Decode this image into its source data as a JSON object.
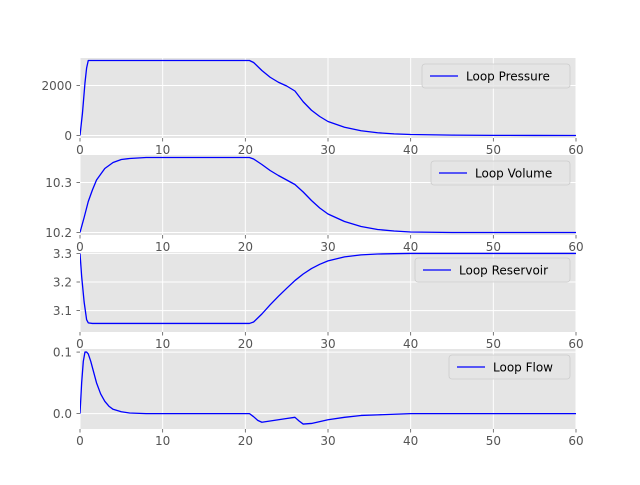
{
  "chart_data": [
    {
      "type": "line",
      "title": "",
      "xlabel": "",
      "ylabel": "",
      "xlim": [
        0,
        60
      ],
      "ylim": [
        -100,
        3100
      ],
      "grid": true,
      "legend": {
        "placement": "upper-right",
        "entries": [
          "Loop Pressure"
        ]
      },
      "x_ticks": [
        0,
        10,
        20,
        30,
        40,
        50,
        60
      ],
      "x_tick_labels": [
        "0",
        "10",
        "20",
        "30",
        "40",
        "50",
        "60"
      ],
      "y_ticks": [
        0,
        2000
      ],
      "y_tick_labels": [
        "0",
        "2000"
      ],
      "color": "#0000ff",
      "series": [
        {
          "name": "Loop Pressure",
          "x": [
            0,
            0.3,
            0.6,
            0.8,
            1,
            1.5,
            3,
            5,
            10,
            15,
            20,
            20.5,
            21,
            22,
            23,
            24,
            25,
            26,
            27,
            28,
            29,
            30,
            32,
            34,
            36,
            38,
            40,
            45,
            50,
            55,
            60
          ],
          "y": [
            0,
            900,
            2100,
            2700,
            3000,
            3000,
            3000,
            3000,
            3000,
            3000,
            3000,
            3000,
            2920,
            2600,
            2330,
            2130,
            1980,
            1780,
            1350,
            1010,
            760,
            560,
            330,
            190,
            110,
            65,
            40,
            15,
            5,
            2,
            0
          ]
        }
      ]
    },
    {
      "type": "line",
      "title": "",
      "xlabel": "",
      "ylabel": "",
      "xlim": [
        0,
        60
      ],
      "ylim": [
        10.195,
        10.355
      ],
      "grid": true,
      "legend": {
        "placement": "upper-right",
        "entries": [
          "Loop Volume"
        ]
      },
      "x_ticks": [
        0,
        10,
        20,
        30,
        40,
        50,
        60
      ],
      "x_tick_labels": [
        "0",
        "10",
        "20",
        "30",
        "40",
        "50",
        "60"
      ],
      "y_ticks": [
        10.2,
        10.3
      ],
      "y_tick_labels": [
        "10.2",
        "10.3"
      ],
      "color": "#0000ff",
      "series": [
        {
          "name": "Loop Volume",
          "x": [
            0,
            0.5,
            1,
            1.5,
            2,
            3,
            4,
            5,
            6,
            8,
            10,
            15,
            20,
            20.5,
            21,
            22,
            23,
            24,
            25,
            26,
            27,
            28,
            29,
            30,
            32,
            34,
            36,
            38,
            40,
            45,
            50,
            55,
            60
          ],
          "y": [
            10.2,
            10.23,
            10.262,
            10.285,
            10.305,
            10.328,
            10.34,
            10.346,
            10.348,
            10.35,
            10.35,
            10.35,
            10.35,
            10.35,
            10.347,
            10.336,
            10.324,
            10.314,
            10.305,
            10.296,
            10.281,
            10.264,
            10.249,
            10.237,
            10.222,
            10.212,
            10.206,
            10.203,
            10.201,
            10.2,
            10.2,
            10.2,
            10.2
          ]
        }
      ]
    },
    {
      "type": "line",
      "title": "",
      "xlabel": "",
      "ylabel": "",
      "xlim": [
        0,
        60
      ],
      "ylim": [
        3.025,
        3.305
      ],
      "grid": true,
      "legend": {
        "placement": "upper-right",
        "entries": [
          "Loop Reservoir"
        ]
      },
      "x_ticks": [
        0,
        10,
        20,
        30,
        40,
        50,
        60
      ],
      "x_tick_labels": [
        "0",
        "10",
        "20",
        "30",
        "40",
        "50",
        "60"
      ],
      "y_ticks": [
        3.1,
        3.2,
        3.3
      ],
      "y_tick_labels": [
        "3.1",
        "3.2",
        "3.3"
      ],
      "color": "#0000ff",
      "series": [
        {
          "name": "Loop Reservoir",
          "x": [
            0,
            0.2,
            0.5,
            0.8,
            1,
            1.5,
            2,
            5,
            10,
            15,
            20,
            20.5,
            21,
            22,
            23,
            24,
            25,
            26,
            27,
            28,
            29,
            30,
            32,
            34,
            36,
            38,
            40,
            45,
            50,
            55,
            60
          ],
          "y": [
            3.3,
            3.22,
            3.13,
            3.068,
            3.057,
            3.055,
            3.055,
            3.055,
            3.055,
            3.055,
            3.055,
            3.055,
            3.06,
            3.088,
            3.12,
            3.15,
            3.178,
            3.205,
            3.228,
            3.247,
            3.262,
            3.274,
            3.288,
            3.295,
            3.298,
            3.299,
            3.3,
            3.3,
            3.3,
            3.3,
            3.3
          ]
        }
      ]
    },
    {
      "type": "line",
      "title": "",
      "xlabel": "",
      "ylabel": "",
      "xlim": [
        0,
        60
      ],
      "ylim": [
        -0.025,
        0.105
      ],
      "grid": true,
      "legend": {
        "placement": "upper-right",
        "entries": [
          "Loop Flow"
        ]
      },
      "x_ticks": [
        0,
        10,
        20,
        30,
        40,
        50,
        60
      ],
      "x_tick_labels": [
        "0",
        "10",
        "20",
        "30",
        "40",
        "50",
        "60"
      ],
      "y_ticks": [
        0.0,
        0.1
      ],
      "y_tick_labels": [
        "0.0",
        "0.1"
      ],
      "color": "#0000ff",
      "series": [
        {
          "name": "Loop Flow",
          "x": [
            0,
            0.2,
            0.4,
            0.6,
            0.8,
            1.0,
            1.3,
            1.6,
            2,
            2.5,
            3,
            3.5,
            4,
            5,
            6,
            8,
            10,
            15,
            20,
            20.5,
            21,
            21.5,
            22,
            23,
            24,
            25,
            26,
            26.5,
            27,
            28,
            29,
            30,
            32,
            34,
            36,
            38,
            40,
            45,
            50,
            55,
            60
          ],
          "y": [
            0,
            0.05,
            0.085,
            0.1,
            0.1,
            0.097,
            0.085,
            0.07,
            0.05,
            0.032,
            0.02,
            0.012,
            0.007,
            0.003,
            0.001,
            0,
            0,
            0,
            0,
            0,
            -0.005,
            -0.011,
            -0.014,
            -0.012,
            -0.01,
            -0.008,
            -0.006,
            -0.012,
            -0.017,
            -0.016,
            -0.013,
            -0.01,
            -0.006,
            -0.003,
            -0.002,
            -0.001,
            0,
            0,
            0,
            0,
            0
          ]
        }
      ]
    }
  ]
}
